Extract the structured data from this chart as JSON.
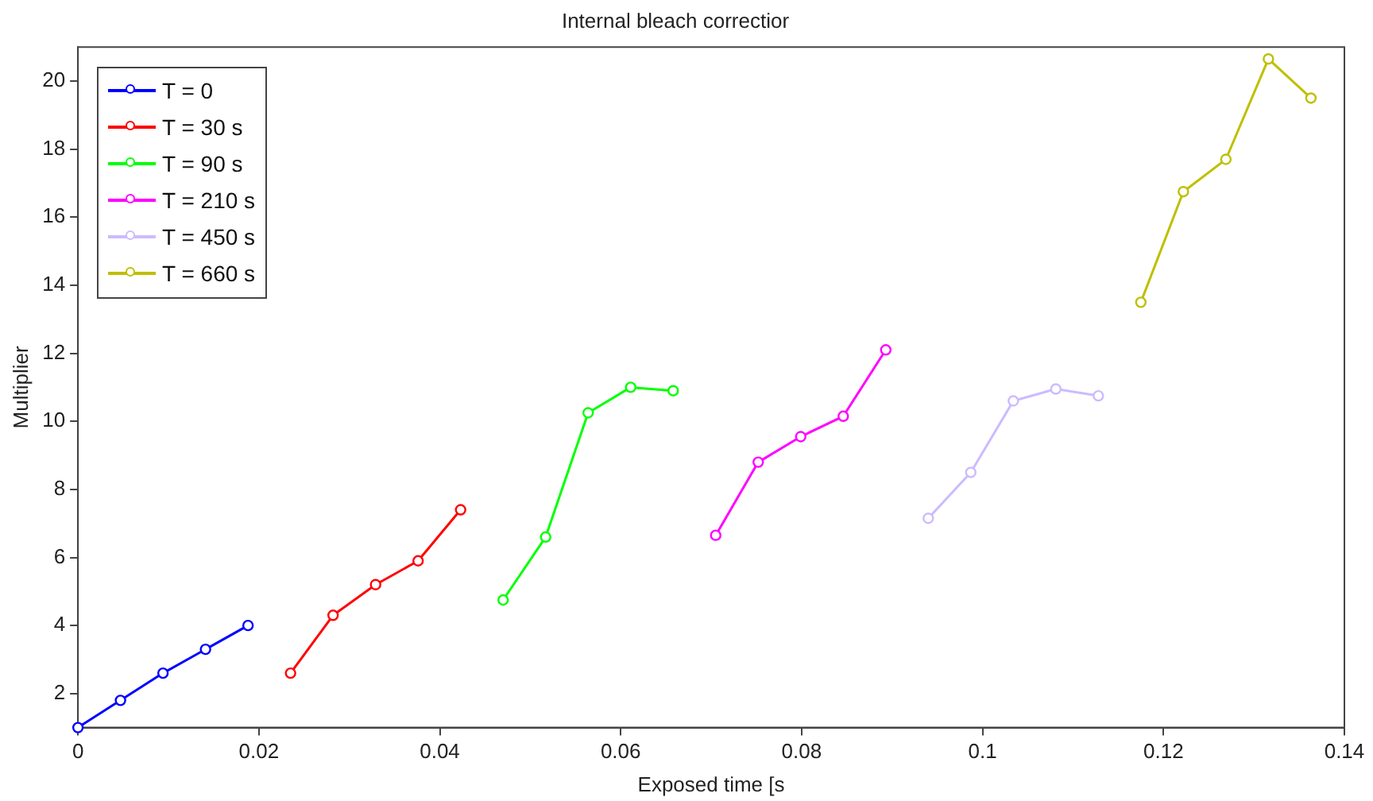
{
  "chart_data": {
    "type": "line",
    "title": "Internal bleach correctior",
    "xlabel": "Exposed time [s",
    "ylabel": "Multiplier",
    "xlim": [
      0,
      0.14
    ],
    "xticks": [
      0,
      0.02,
      0.04,
      0.06,
      0.08,
      0.1,
      0.12,
      0.14
    ],
    "ylim": [
      1,
      21
    ],
    "yticks": [
      2,
      4,
      6,
      8,
      10,
      12,
      14,
      16,
      18,
      20
    ],
    "grid": false,
    "legend": "top left",
    "marker": "circle",
    "line_style": "solid",
    "series": [
      {
        "name": "T = 0",
        "color": "#0000ff",
        "x": [
          0,
          0.0047,
          0.0094,
          0.0141,
          0.0188
        ],
        "values": [
          1.0,
          1.8,
          2.6,
          3.3,
          4.0
        ]
      },
      {
        "name": "T = 30 s",
        "color": "#ff0000",
        "x": [
          0.0235,
          0.0282,
          0.0329,
          0.0376,
          0.0423
        ],
        "values": [
          2.6,
          4.3,
          5.2,
          5.9,
          7.4
        ]
      },
      {
        "name": "T = 90 s",
        "color": "#00ff00",
        "x": [
          0.047,
          0.0517,
          0.0564,
          0.0611,
          0.0658
        ],
        "values": [
          4.75,
          6.6,
          10.25,
          11.0,
          10.9
        ]
      },
      {
        "name": "T = 210 s",
        "color": "#ff00ff",
        "x": [
          0.0705,
          0.0752,
          0.0799,
          0.0846,
          0.0893
        ],
        "values": [
          6.65,
          8.8,
          9.55,
          10.15,
          12.1
        ]
      },
      {
        "name": "T = 450 s",
        "color": "#ccbbff",
        "x": [
          0.094,
          0.0987,
          0.1034,
          0.1081,
          0.1128
        ],
        "values": [
          7.15,
          8.5,
          10.6,
          10.95,
          10.75
        ]
      },
      {
        "name": "T = 660 s",
        "color": "#bfbf00",
        "x": [
          0.1175,
          0.1222,
          0.1269,
          0.1316,
          0.1363
        ],
        "values": [
          13.5,
          16.75,
          17.7,
          20.65,
          19.5
        ]
      }
    ]
  }
}
